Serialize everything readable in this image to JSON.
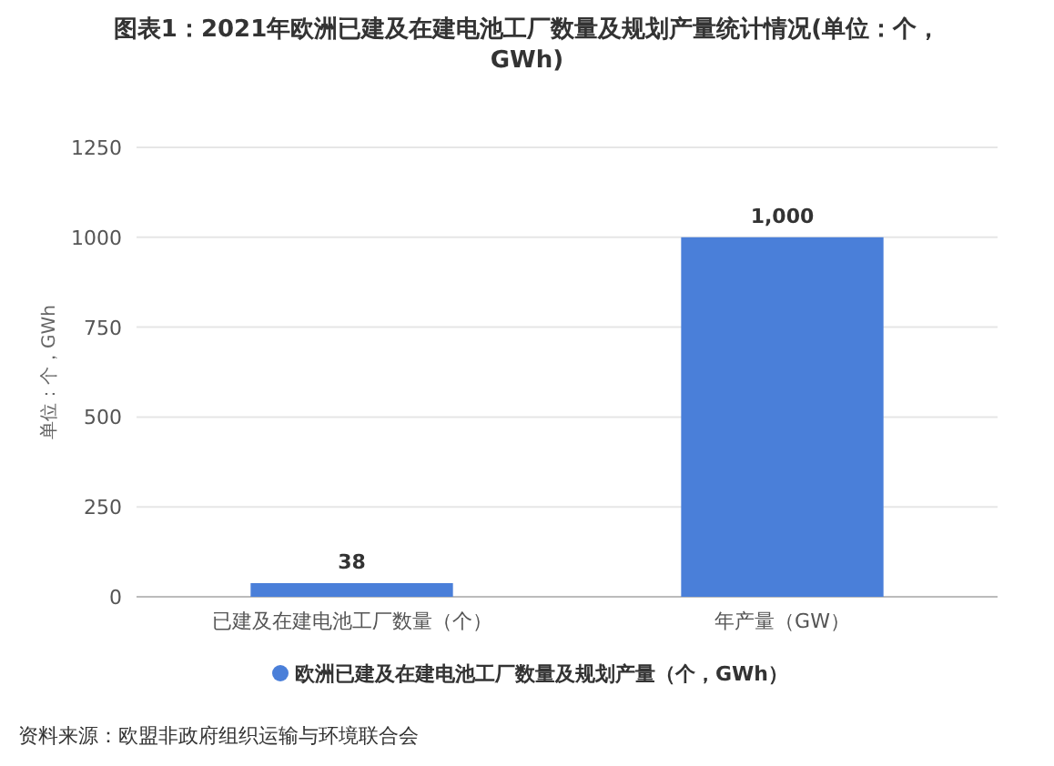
{
  "chart_data": {
    "type": "bar",
    "title": "图表1：2021年欧洲已建及在建电池工厂数量及规划产量统计情况(单位：个，GWh)",
    "ylabel": "单位：个，GWh",
    "categories": [
      "已建及在建电池工厂数量（个）",
      "年产量（GW）"
    ],
    "series": [
      {
        "name": "欧洲已建及在建电池工厂数量及规划产量（个，GWh）",
        "color": "#4a7fd9",
        "values": [
          38,
          1000
        ],
        "value_labels": [
          "38",
          "1,000"
        ]
      }
    ],
    "ylim": [
      0,
      1250
    ],
    "yticks": [
      0,
      250,
      500,
      750,
      1000,
      1250
    ],
    "grid": "y",
    "legend": "bottom",
    "annotations": [
      "资料来源：欧盟非政府组织运输与环境联合会"
    ]
  }
}
